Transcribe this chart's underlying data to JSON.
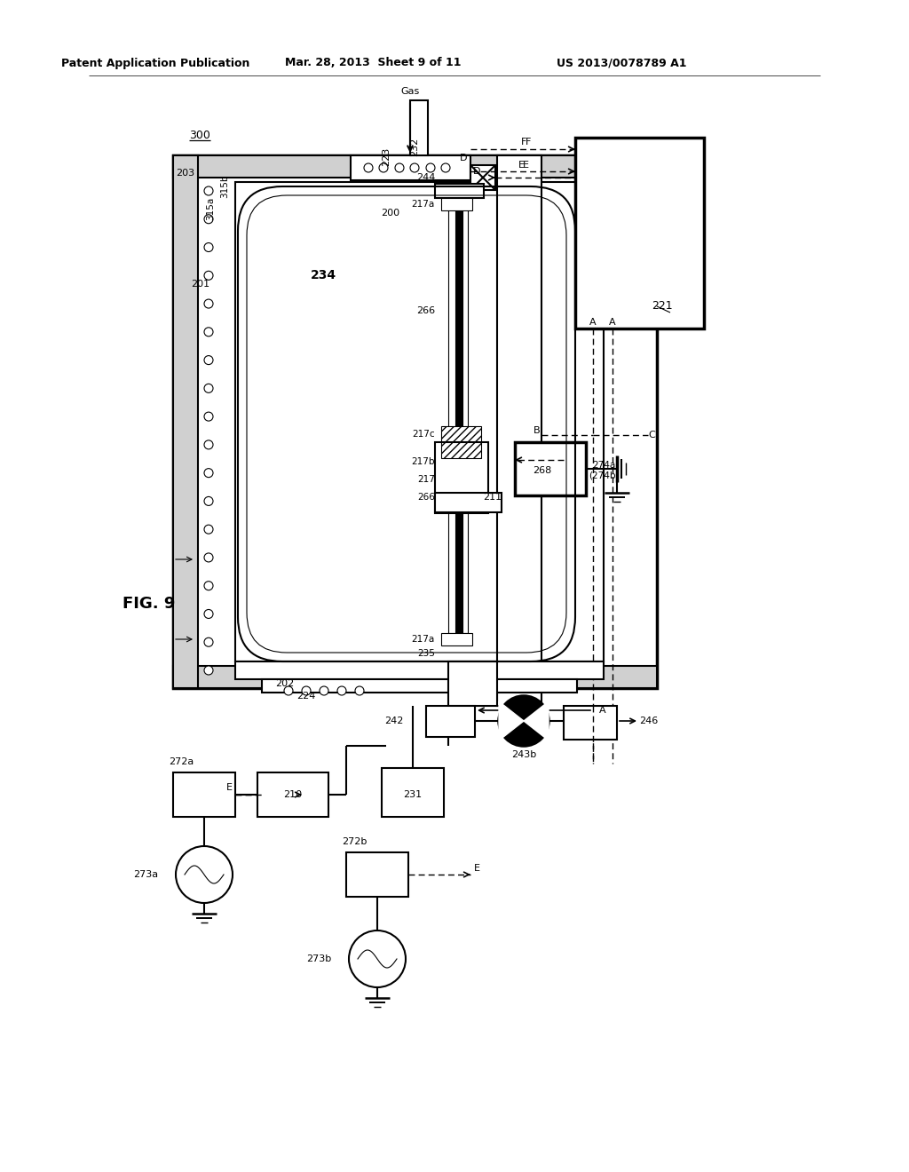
{
  "bg_color": "#ffffff",
  "header_left": "Patent Application Publication",
  "header_mid": "Mar. 28, 2013  Sheet 9 of 11",
  "header_right": "US 2013/0078789 A1",
  "fig_label": "FIG. 9"
}
